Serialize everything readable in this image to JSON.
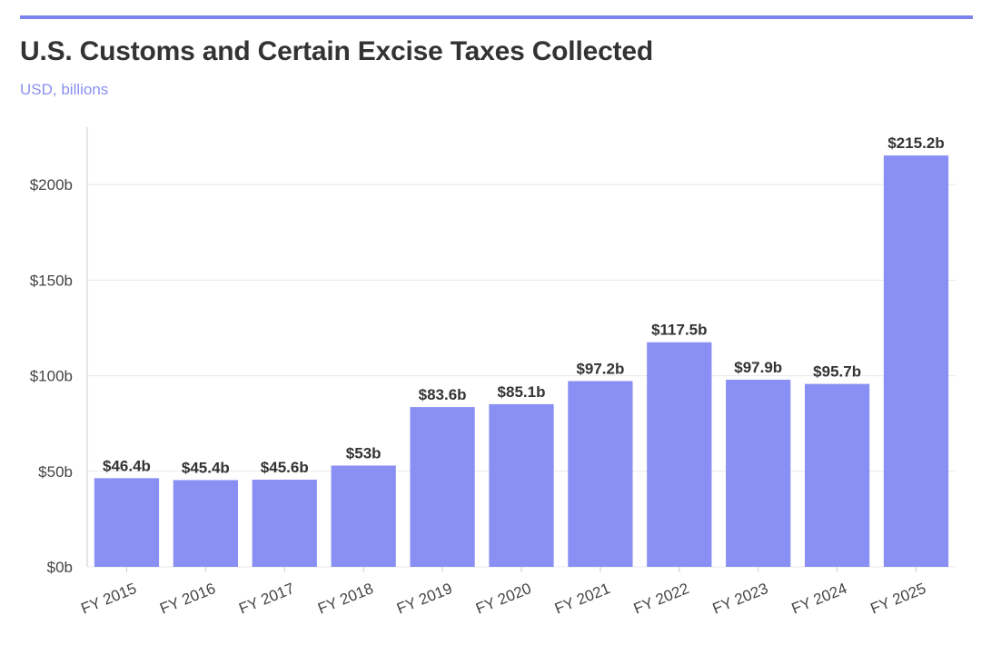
{
  "header": {
    "title": "U.S. Customs and Certain Excise Taxes Collected",
    "subtitle": "USD, billions"
  },
  "colors": {
    "bar": "#8a90f3",
    "accent": "#7b83ec",
    "grid": "#e8e8e8",
    "axis": "#cccccc"
  },
  "chart_data": {
    "type": "bar",
    "title": "U.S. Customs and Certain Excise Taxes Collected",
    "subtitle": "USD, billions",
    "categories": [
      "FY 2015",
      "FY 2016",
      "FY 2017",
      "FY 2018",
      "FY 2019",
      "FY 2020",
      "FY 2021",
      "FY 2022",
      "FY 2023",
      "FY 2024",
      "FY 2025"
    ],
    "values": [
      46.4,
      45.4,
      45.6,
      53,
      83.6,
      85.1,
      97.2,
      117.5,
      97.9,
      95.7,
      215.2
    ],
    "data_labels": [
      "$46.4b",
      "$45.4b",
      "$45.6b",
      "$53b",
      "$83.6b",
      "$85.1b",
      "$97.2b",
      "$117.5b",
      "$97.9b",
      "$95.7b",
      "$215.2b"
    ],
    "yticks": [
      0,
      50,
      100,
      150,
      200
    ],
    "ytick_labels": [
      "$0b",
      "$50b",
      "$100b",
      "$150b",
      "$200b"
    ],
    "ylim": [
      0,
      230
    ],
    "xlabel": "",
    "ylabel": "",
    "grid": true,
    "legend": "none"
  }
}
